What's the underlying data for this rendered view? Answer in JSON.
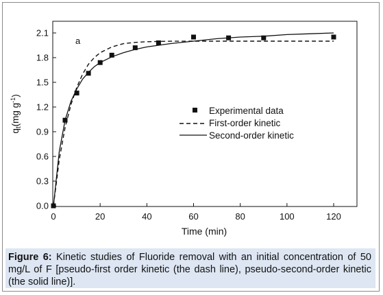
{
  "chart_data": {
    "type": "line",
    "panel_label": "a",
    "xlabel": "Time (min)",
    "ylabel": "q",
    "ylabel_sub": "t",
    "ylabel_units": "(mg g",
    "ylabel_exp": "-1",
    "ylabel_close": ")",
    "xlim": [
      0,
      130
    ],
    "ylim": [
      0.0,
      2.2
    ],
    "xticks": [
      0,
      20,
      40,
      60,
      80,
      100,
      120
    ],
    "yticks": [
      0.0,
      0.3,
      0.6,
      0.9,
      1.2,
      1.5,
      1.8,
      2.1
    ],
    "xtick_labels": [
      "0",
      "20",
      "40",
      "60",
      "80",
      "100",
      "120"
    ],
    "ytick_labels": [
      "0.0",
      "0.3",
      "0.6",
      "0.9",
      "1.2",
      "1.5",
      "1.8",
      "2.1"
    ],
    "grid": false,
    "legend_position": "center-right",
    "series": [
      {
        "name": "Experimental data",
        "kind": "scatter",
        "marker": "square",
        "x": [
          0,
          5,
          10,
          15,
          20,
          25,
          35,
          45,
          60,
          75,
          90,
          120
        ],
        "y": [
          0.0,
          1.04,
          1.37,
          1.61,
          1.74,
          1.83,
          1.92,
          1.98,
          2.05,
          2.04,
          2.04,
          2.05
        ]
      },
      {
        "name": "First-order kinetic",
        "kind": "line",
        "style": "dashed",
        "x": [
          0,
          2.5,
          5,
          7.5,
          10,
          12.5,
          15,
          17.5,
          20,
          25,
          30,
          35,
          40,
          45,
          50,
          60,
          70,
          80,
          90,
          100,
          110,
          120
        ],
        "y": [
          0.0,
          0.56,
          0.95,
          1.23,
          1.44,
          1.6,
          1.72,
          1.8,
          1.86,
          1.93,
          1.97,
          1.985,
          1.993,
          1.997,
          1.999,
          2.0,
          2.0,
          2.0,
          2.0,
          2.0,
          2.0,
          2.0
        ]
      },
      {
        "name": "Second-order kinetic",
        "kind": "line",
        "style": "solid",
        "x": [
          0,
          2.5,
          5,
          7.5,
          10,
          12.5,
          15,
          17.5,
          20,
          25,
          30,
          35,
          40,
          45,
          50,
          60,
          70,
          80,
          90,
          100,
          110,
          120
        ],
        "y": [
          0.0,
          0.66,
          1.04,
          1.27,
          1.42,
          1.54,
          1.62,
          1.69,
          1.74,
          1.81,
          1.86,
          1.9,
          1.93,
          1.95,
          1.97,
          2.0,
          2.03,
          2.05,
          2.06,
          2.08,
          2.09,
          2.1
        ]
      }
    ]
  },
  "caption": {
    "label": "Figure 6:",
    "text": " Kinetic studies of Fluoride removal with an initial concentration of 50 mg/L of F [pseudo-first order kinetic (the dash line), pseudo-second-order kinetic (the solid line)]."
  }
}
